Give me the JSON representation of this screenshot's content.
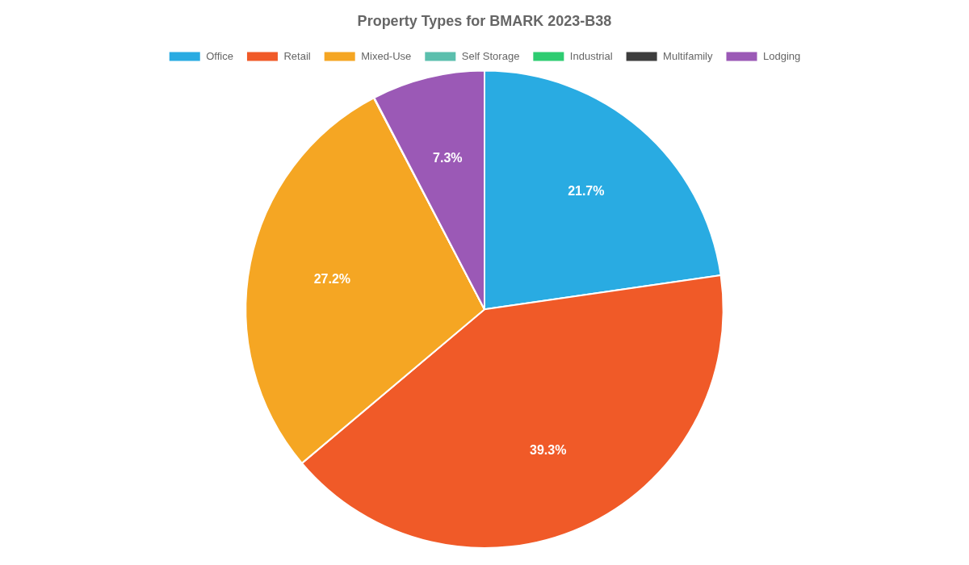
{
  "chart_data": {
    "type": "pie",
    "title": "Property Types for BMARK 2023-B38",
    "categories": [
      "Office",
      "Retail",
      "Mixed-Use",
      "Self Storage",
      "Industrial",
      "Multifamily",
      "Lodging"
    ],
    "values": [
      21.7,
      39.3,
      27.2,
      0.01,
      0.01,
      0.01,
      7.3
    ],
    "value_labels": [
      "21.7%",
      "39.3%",
      "27.2%",
      null,
      null,
      null,
      "7.3%"
    ],
    "colors": [
      "#29abe2",
      "#f05a28",
      "#f5a623",
      "#5bbfad",
      "#2ecc71",
      "#3d3d3d",
      "#9b59b6"
    ],
    "data_labels": true,
    "legend": "top"
  }
}
